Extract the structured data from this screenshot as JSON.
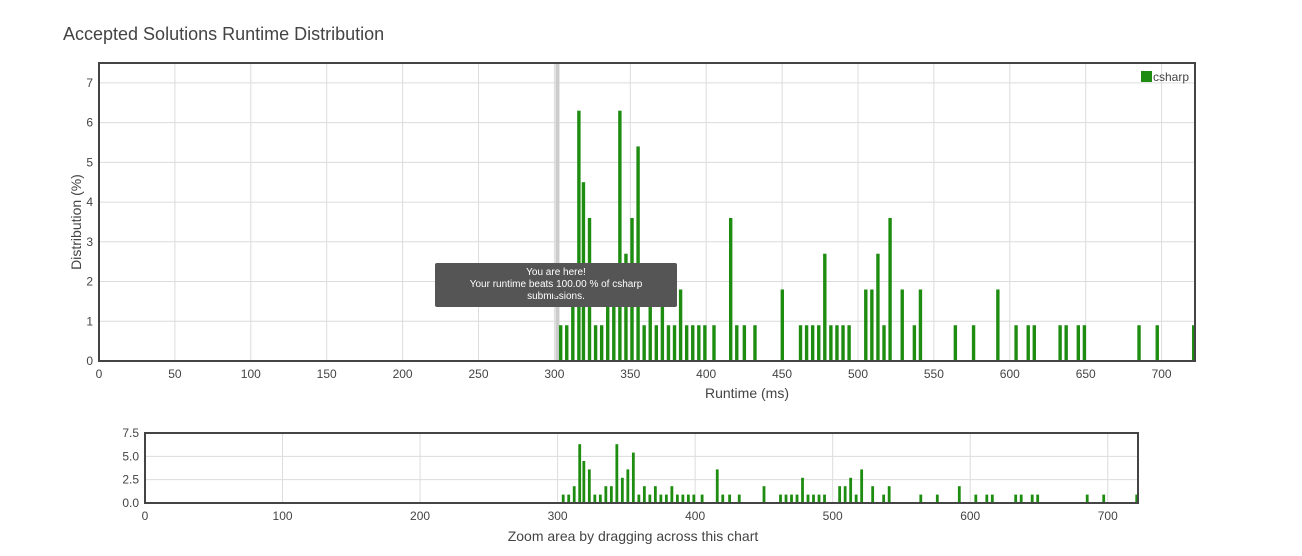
{
  "chart_data": {
    "type": "bar",
    "title": "Accepted Solutions Runtime Distribution",
    "xlabel": "Runtime (ms)",
    "ylabel": "Distribution (%)",
    "xlim": [
      0,
      722
    ],
    "ylim": [
      0,
      7.5
    ],
    "x_ticks": [
      0,
      50,
      100,
      150,
      200,
      250,
      300,
      350,
      400,
      450,
      500,
      550,
      600,
      650,
      700
    ],
    "y_ticks": [
      0,
      1,
      2,
      3,
      4,
      5,
      6,
      7
    ],
    "grid": true,
    "legend_position": "top-right",
    "series": [
      {
        "name": "csharp",
        "color": "#1e8c10",
        "x": [
          304,
          308,
          312,
          316,
          319,
          323,
          327,
          331,
          335,
          339,
          343,
          347,
          351,
          355,
          359,
          363,
          367,
          371,
          375,
          379,
          383,
          387,
          391,
          395,
          399,
          405,
          416,
          420,
          425,
          432,
          450,
          462,
          466,
          470,
          474,
          478,
          482,
          486,
          490,
          494,
          505,
          509,
          513,
          517,
          521,
          529,
          537,
          541,
          564,
          576,
          592,
          604,
          612,
          616,
          633,
          637,
          645,
          649,
          685,
          697,
          721
        ],
        "values": [
          0.9,
          0.9,
          1.8,
          6.3,
          4.5,
          3.6,
          0.9,
          0.9,
          1.8,
          1.8,
          6.3,
          2.7,
          3.6,
          5.4,
          0.9,
          1.8,
          0.9,
          1.8,
          0.9,
          0.9,
          1.8,
          0.9,
          0.9,
          0.9,
          0.9,
          0.9,
          3.6,
          0.9,
          0.9,
          0.9,
          1.8,
          0.9,
          0.9,
          0.9,
          0.9,
          2.7,
          0.9,
          0.9,
          0.9,
          0.9,
          1.8,
          1.8,
          2.7,
          0.9,
          3.6,
          1.8,
          0.9,
          1.8,
          0.9,
          0.9,
          1.8,
          0.9,
          0.9,
          0.9,
          0.9,
          0.9,
          0.9,
          0.9,
          0.9,
          0.9,
          0.9
        ]
      }
    ],
    "marker": {
      "x": 302
    },
    "tooltip": {
      "line1": "You are here!",
      "line2": "Your runtime beats 100.00 % of csharp submissions."
    },
    "navigator": {
      "x_ticks": [
        0,
        100,
        200,
        300,
        400,
        500,
        600,
        700
      ],
      "y_ticks": [
        "0.0",
        "2.5",
        "5.0",
        "7.5"
      ],
      "y_tick_values": [
        0,
        2.5,
        5,
        7.5
      ],
      "caption": "Zoom area by dragging across this chart"
    }
  }
}
